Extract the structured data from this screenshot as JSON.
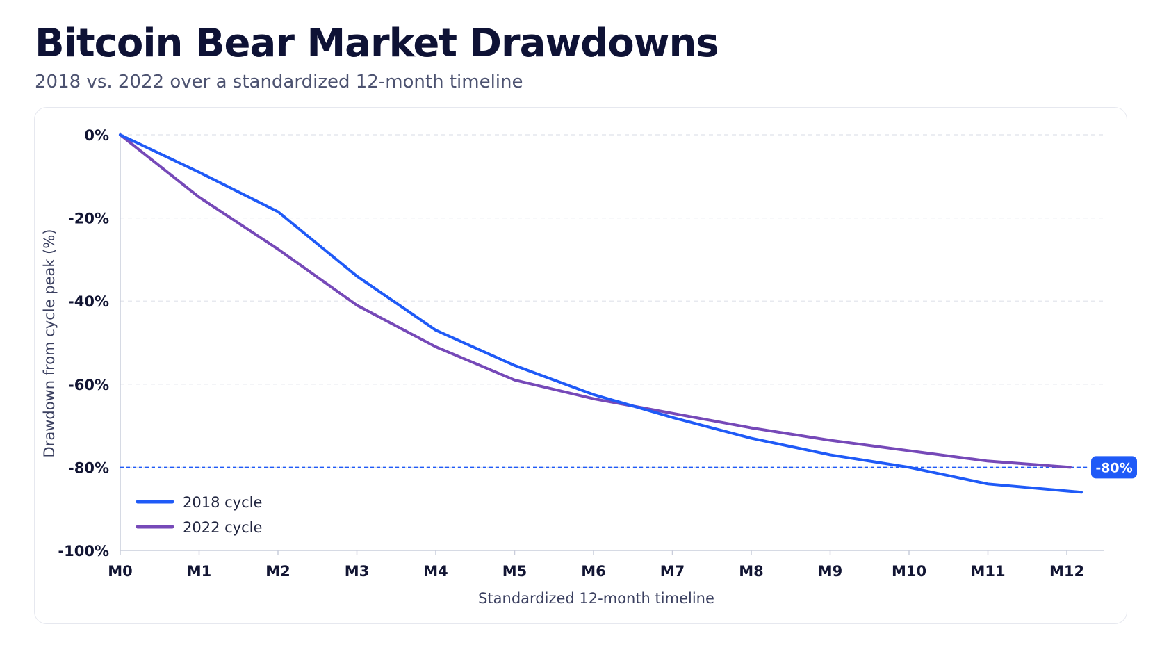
{
  "header": {
    "title": "Bitcoin Bear Market Drawdowns",
    "subtitle": "2018 vs. 2022 over a standardized 12-month timeline"
  },
  "chart_data": {
    "type": "line",
    "title": "Bitcoin Bear Market Drawdowns",
    "subtitle": "2018 vs. 2022 over a standardized 12-month timeline",
    "xlabel": "Standardized 12-month timeline",
    "ylabel": "Drawdown from cycle peak (%)",
    "categories": [
      "M0",
      "M1",
      "M2",
      "M3",
      "M4",
      "M5",
      "M6",
      "M7",
      "M8",
      "M9",
      "M10",
      "M11",
      "M12"
    ],
    "ylim": [
      -100,
      0
    ],
    "yticks": [
      0,
      -20,
      -40,
      -60,
      -80,
      -100
    ],
    "ytick_labels": [
      "0%",
      "-20%",
      "-40%",
      "-60%",
      "-80%",
      "-100%"
    ],
    "grid": "horizontal dashed",
    "legend": "bottom-left",
    "series": [
      {
        "name": "2018 cycle",
        "color": "#1f5af7",
        "values": [
          0,
          -9,
          -18.5,
          -34,
          -47,
          -55.5,
          -62.5,
          -68,
          -73,
          -77,
          -80,
          -84,
          -86
        ]
      },
      {
        "name": "2022 cycle",
        "color": "#7649b8",
        "values": [
          0,
          -15,
          -27.5,
          -41,
          -51,
          -59,
          -63.5,
          -67,
          -70.5,
          -73.5,
          -76,
          -78.5,
          -80
        ]
      }
    ],
    "reference_line": {
      "value": -80,
      "label": "-80%",
      "color": "#1f5af7",
      "style": "dashed"
    }
  }
}
